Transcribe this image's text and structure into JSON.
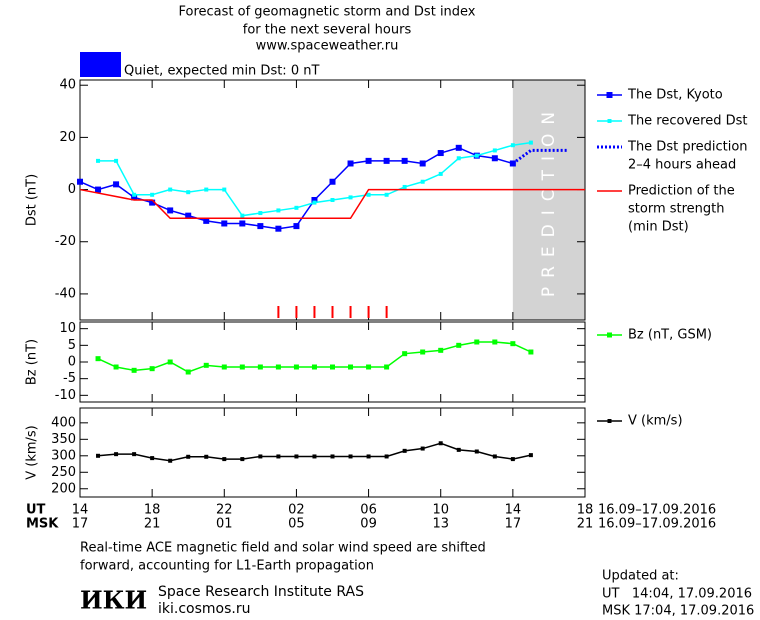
{
  "header": {
    "title_lines": [
      "Forecast of geomagnetic storm and Dst index",
      "for the next several hours",
      "www.spaceweather.ru"
    ],
    "status": "Quiet, expected min Dst: 0 nT",
    "status_color": "#0000ff"
  },
  "chart_data": [
    {
      "type": "line",
      "ylabel": "Dst (nT)",
      "ylim": [
        -50,
        42
      ],
      "yticks": [
        -40,
        -20,
        0,
        20,
        40
      ],
      "prediction_region": [
        24,
        28
      ],
      "prediction_label": "PREDICTION",
      "storm_markers_x": [
        11,
        12,
        13,
        14,
        15,
        16,
        17
      ],
      "storm_marker_color": "#ff0000",
      "series": [
        {
          "name": [
            "The Dst, Kyoto"
          ],
          "color": "#0000ff",
          "marker": "square",
          "marker_size": 6,
          "line_style": "solid",
          "x": [
            0,
            1,
            2,
            3,
            4,
            5,
            6,
            7,
            8,
            9,
            10,
            11,
            12,
            13,
            14,
            15,
            16,
            17,
            18,
            19,
            20,
            21,
            22,
            23,
            24
          ],
          "values": [
            3,
            0,
            2,
            -3,
            -5,
            -8,
            -10,
            -12,
            -13,
            -13,
            -14,
            -15,
            -14,
            -4,
            3,
            10,
            11,
            11,
            11,
            10,
            14,
            16,
            13,
            12,
            10
          ]
        },
        {
          "name": [
            "The recovered Dst"
          ],
          "color": "#00ffff",
          "marker": "square",
          "marker_size": 4,
          "line_style": "solid",
          "x": [
            1,
            2,
            3,
            4,
            5,
            6,
            7,
            8,
            9,
            10,
            11,
            12,
            13,
            14,
            15,
            16,
            17,
            18,
            19,
            20,
            21,
            22,
            23,
            24,
            25
          ],
          "values": [
            11,
            11,
            -2,
            -2,
            0,
            -1,
            0,
            0,
            -10,
            -9,
            -8,
            -7,
            -5,
            -4,
            -3,
            -2,
            -2,
            1,
            3,
            6,
            12,
            13,
            15,
            17,
            18
          ]
        },
        {
          "name": [
            "The Dst prediction",
            "2–4 hours ahead"
          ],
          "color": "#0000ff",
          "marker": "none",
          "line_style": "dotted",
          "x": [
            24,
            25,
            27
          ],
          "values": [
            10,
            15,
            15
          ]
        },
        {
          "name": [
            "Prediction of the",
            "storm strength",
            "(min Dst)"
          ],
          "color": "#ff0000",
          "marker": "none",
          "line_style": "solid",
          "x": [
            0,
            3,
            4,
            5,
            15,
            16,
            28
          ],
          "values": [
            0,
            -4,
            -4,
            -11,
            -11,
            0,
            0
          ]
        }
      ]
    },
    {
      "type": "line",
      "ylabel": "Bz (nT)",
      "ylim": [
        -12,
        12
      ],
      "yticks": [
        -10,
        -5,
        0,
        5,
        10
      ],
      "series": [
        {
          "name": "Bz (nT, GSM)",
          "color": "#00ff00",
          "marker": "square",
          "marker_size": 5,
          "line_style": "solid",
          "x": [
            1,
            2,
            3,
            4,
            5,
            6,
            7,
            8,
            9,
            10,
            11,
            12,
            13,
            14,
            15,
            16,
            17,
            18,
            19,
            20,
            21,
            22,
            23,
            24,
            25
          ],
          "values": [
            1,
            -1.5,
            -2.5,
            -2,
            0,
            -3,
            -1,
            -1.5,
            -1.5,
            -1.5,
            -1.5,
            -1.5,
            -1.5,
            -1.5,
            -1.5,
            -1.5,
            -1.5,
            2.5,
            3,
            3.5,
            5,
            6,
            6,
            5.5,
            3
          ]
        }
      ]
    },
    {
      "type": "line",
      "ylabel": "V (km/s)",
      "ylim": [
        175,
        445
      ],
      "yticks": [
        200,
        250,
        300,
        350,
        400
      ],
      "xlim": [
        0,
        28
      ],
      "xticks": [
        {
          "value": 0,
          "label": "14"
        },
        {
          "value": 4,
          "label": "18"
        },
        {
          "value": 8,
          "label": "22"
        },
        {
          "value": 12,
          "label": "02"
        },
        {
          "value": 16,
          "label": "06"
        },
        {
          "value": 20,
          "label": "10"
        },
        {
          "value": 24,
          "label": "14"
        },
        {
          "value": 28,
          "label": "18"
        }
      ],
      "x2ticklabels": [
        "17",
        "21",
        "01",
        "05",
        "09",
        "13",
        "17",
        "21"
      ],
      "xlabel": "UT",
      "x2label": "MSK",
      "xrange_text": "16.09–17.09.2016",
      "x2range_text": "16.09–17.09.2016",
      "series": [
        {
          "name": "V (km/s)",
          "color": "#000000",
          "marker": "square",
          "marker_size": 4,
          "line_style": "solid",
          "x": [
            1,
            2,
            3,
            4,
            5,
            6,
            7,
            8,
            9,
            10,
            11,
            12,
            13,
            14,
            15,
            16,
            17,
            18,
            19,
            20,
            21,
            22,
            23,
            24,
            25
          ],
          "values": [
            300,
            305,
            305,
            293,
            285,
            297,
            297,
            290,
            290,
            298,
            298,
            298,
            298,
            298,
            298,
            298,
            298,
            315,
            322,
            338,
            318,
            313,
            298,
            290,
            302
          ]
        }
      ]
    }
  ],
  "footer": {
    "note_lines": [
      "Real-time ACE magnetic field and solar wind speed are shifted",
      "forward, accounting for L1-Earth propagation"
    ],
    "logo": "ИКИ",
    "institute": "Space Research Institute RAS",
    "website": "iki.cosmos.ru",
    "updated_lines": [
      "Updated at:",
      "UT   14:04, 17.09.2016",
      "MSK 17:04, 17.09.2016"
    ]
  }
}
